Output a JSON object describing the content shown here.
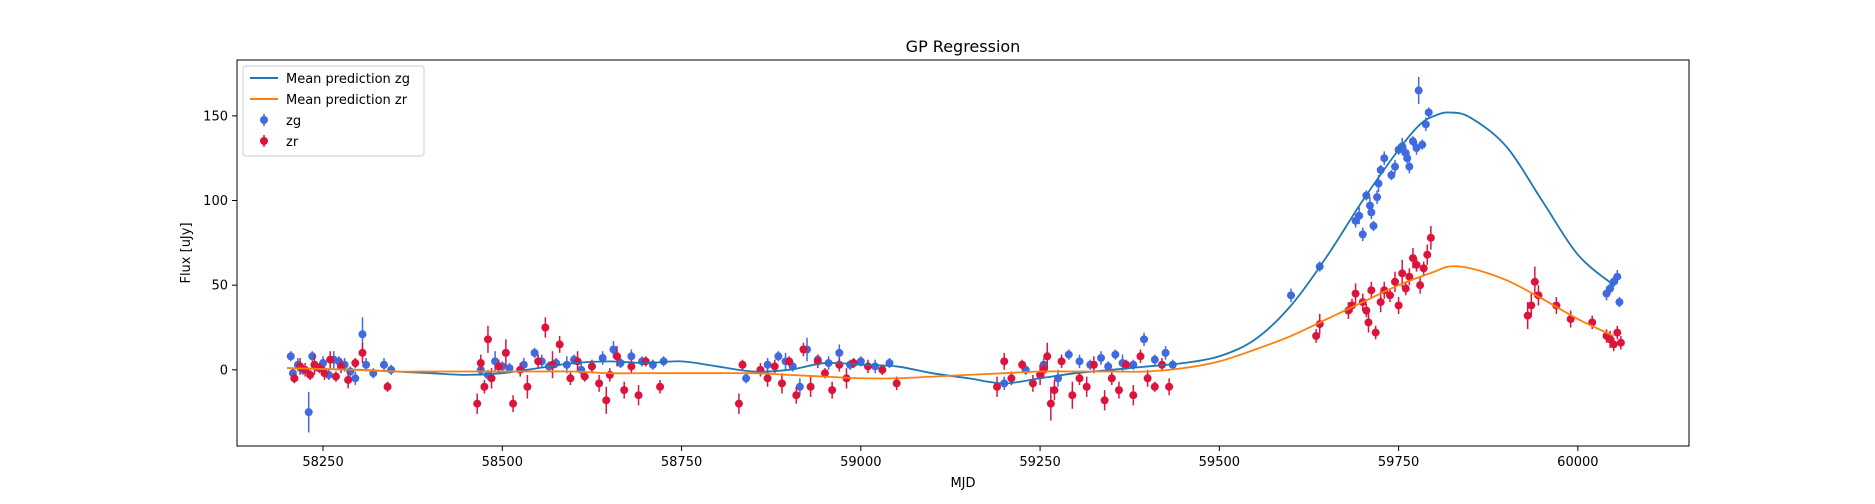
{
  "chart_data": {
    "type": "scatter",
    "title": "GP Regression",
    "xlabel": "MJD",
    "ylabel": "Flux [uJy]",
    "xlim": [
      58130,
      60155
    ],
    "ylim": [
      -45,
      183
    ],
    "xticks": [
      58250,
      58500,
      58750,
      59000,
      59250,
      59500,
      59750,
      60000
    ],
    "yticks": [
      0,
      50,
      100,
      150
    ],
    "grid": false,
    "legend_position": "top-left",
    "colors": {
      "zg": "#4169e1",
      "zr": "#dc143c",
      "mean_zg": "#1f77b4",
      "mean_zr": "#ff7f0e"
    },
    "lines": [
      {
        "name": "Mean prediction zg",
        "x": [
          58200,
          58250,
          58300,
          58350,
          58400,
          58450,
          58500,
          58550,
          58600,
          58650,
          58700,
          58750,
          58800,
          58850,
          58900,
          58950,
          59000,
          59050,
          59100,
          59150,
          59200,
          59250,
          59300,
          59350,
          59400,
          59450,
          59500,
          59550,
          59600,
          59650,
          59700,
          59750,
          59780,
          59800,
          59820,
          59850,
          59900,
          59950,
          60000,
          60050
        ],
        "y": [
          1,
          0.5,
          0,
          -1,
          -2,
          -3,
          -2,
          1,
          4,
          5,
          4,
          5,
          2,
          -1,
          0,
          4,
          3,
          2,
          -2,
          -5,
          -8,
          -5,
          -2,
          0,
          2,
          4,
          8,
          18,
          38,
          67,
          100,
          130,
          145,
          150,
          152,
          149,
          132,
          100,
          68,
          50
        ]
      },
      {
        "name": "Mean prediction zr",
        "x": [
          58200,
          58250,
          58300,
          58350,
          58400,
          58450,
          58500,
          58550,
          58600,
          58650,
          58700,
          58750,
          58800,
          58850,
          58900,
          58950,
          59000,
          59050,
          59100,
          59150,
          59200,
          59250,
          59300,
          59350,
          59400,
          59450,
          59500,
          59550,
          59600,
          59650,
          59700,
          59750,
          59800,
          59820,
          59850,
          59900,
          59950,
          60000,
          60050
        ],
        "y": [
          1,
          0.5,
          0,
          -1,
          -1,
          -1,
          -1,
          -1,
          -1,
          -2,
          -2,
          -2,
          -2,
          -2,
          -3,
          -4,
          -5,
          -5,
          -4,
          -3,
          -2,
          -1,
          -1,
          -1,
          -1,
          1,
          5,
          12,
          20,
          30,
          40,
          50,
          58,
          61,
          60,
          53,
          42,
          30,
          20
        ]
      }
    ],
    "series": [
      {
        "name": "zg",
        "x": [
          58205,
          58208,
          58215,
          58222,
          58230,
          58235,
          58240,
          58250,
          58258,
          58265,
          58272,
          58280,
          58288,
          58295,
          58305,
          58310,
          58320,
          58335,
          58345,
          58470,
          58480,
          58490,
          58500,
          58510,
          58530,
          58545,
          58555,
          58565,
          58575,
          58590,
          58600,
          58610,
          58625,
          58640,
          58655,
          58665,
          58680,
          58695,
          58710,
          58725,
          58840,
          58870,
          58885,
          58895,
          58905,
          58915,
          58925,
          58940,
          58955,
          58970,
          58985,
          59000,
          59020,
          59040,
          59200,
          59230,
          59255,
          59275,
          59290,
          59305,
          59320,
          59335,
          59345,
          59355,
          59365,
          59380,
          59395,
          59410,
          59425,
          59435,
          59600,
          59640,
          59690,
          59695,
          59700,
          59705,
          59710,
          59712,
          59715,
          59720,
          59722,
          59725,
          59730,
          59740,
          59745,
          59750,
          59755,
          59760,
          59762,
          59765,
          59770,
          59775,
          59778,
          59783,
          59788,
          59792,
          60040,
          60045,
          60050,
          60055,
          60058
        ],
        "y": [
          8,
          -2,
          3,
          0,
          -25,
          8,
          2,
          4,
          -3,
          6,
          5,
          3,
          -1,
          -5,
          21,
          3,
          -2,
          3,
          0,
          0,
          -3,
          5,
          2,
          1,
          3,
          10,
          5,
          2,
          4,
          3,
          6,
          0,
          2,
          7,
          12,
          4,
          8,
          5,
          3,
          5,
          -5,
          3,
          8,
          5,
          2,
          -10,
          12,
          6,
          4,
          10,
          3,
          5,
          2,
          4,
          -8,
          0,
          3,
          -5,
          9,
          5,
          3,
          7,
          2,
          9,
          4,
          3,
          18,
          6,
          10,
          3,
          44,
          61,
          88,
          91,
          80,
          103,
          97,
          93,
          85,
          102,
          110,
          118,
          125,
          115,
          120,
          130,
          132,
          128,
          125,
          120,
          135,
          131,
          165,
          133,
          145,
          152,
          45,
          48,
          52,
          55,
          40
        ],
        "err": [
          3,
          3,
          4,
          3,
          12,
          3,
          3,
          4,
          3,
          5,
          3,
          4,
          3,
          4,
          10,
          4,
          3,
          4,
          3,
          3,
          3,
          6,
          3,
          3,
          4,
          3,
          4,
          3,
          3,
          5,
          3,
          4,
          3,
          4,
          5,
          3,
          4,
          3,
          3,
          3,
          3,
          4,
          3,
          5,
          3,
          5,
          7,
          3,
          4,
          5,
          3,
          3,
          4,
          3,
          4,
          3,
          4,
          5,
          3,
          4,
          3,
          4,
          3,
          3,
          5,
          3,
          4,
          3,
          4,
          3,
          4,
          3,
          4,
          5,
          4,
          3,
          5,
          4,
          3,
          4,
          5,
          3,
          4,
          3,
          4,
          3,
          5,
          4,
          3,
          4,
          3,
          4,
          8,
          3,
          4,
          3,
          4,
          3,
          3,
          4,
          3
        ]
      },
      {
        "name": "zr",
        "x": [
          58210,
          58218,
          58225,
          58232,
          58238,
          58245,
          58252,
          58260,
          58268,
          58275,
          58285,
          58295,
          58305,
          58340,
          58465,
          58470,
          58475,
          58480,
          58485,
          58495,
          58505,
          58515,
          58525,
          58535,
          58550,
          58560,
          58570,
          58580,
          58595,
          58605,
          58615,
          58625,
          58635,
          58645,
          58650,
          58660,
          58670,
          58680,
          58690,
          58700,
          58720,
          58830,
          58835,
          58860,
          58870,
          58880,
          58890,
          58900,
          58910,
          58920,
          58930,
          58940,
          58950,
          58960,
          58970,
          58980,
          58990,
          59010,
          59030,
          59050,
          59190,
          59200,
          59210,
          59225,
          59240,
          59250,
          59255,
          59260,
          59265,
          59270,
          59280,
          59295,
          59305,
          59315,
          59325,
          59340,
          59350,
          59360,
          59370,
          59380,
          59390,
          59400,
          59410,
          59420,
          59430,
          59635,
          59640,
          59680,
          59685,
          59690,
          59700,
          59705,
          59708,
          59712,
          59718,
          59725,
          59730,
          59738,
          59745,
          59750,
          59755,
          59760,
          59765,
          59770,
          59775,
          59780,
          59785,
          59790,
          59795,
          59930,
          59935,
          59940,
          59945,
          59970,
          59990,
          60020,
          60040,
          60045,
          60050,
          60055,
          60060
        ],
        "y": [
          -5,
          2,
          0,
          -3,
          3,
          1,
          -2,
          6,
          -4,
          2,
          -6,
          4,
          10,
          -10,
          -20,
          4,
          -10,
          18,
          -5,
          2,
          10,
          -20,
          0,
          -10,
          5,
          25,
          3,
          15,
          -5,
          5,
          -4,
          2,
          -8,
          -18,
          -3,
          8,
          -12,
          2,
          -15,
          5,
          -10,
          -20,
          3,
          0,
          -5,
          2,
          -8,
          5,
          -15,
          12,
          -10,
          5,
          -2,
          -12,
          3,
          -5,
          4,
          2,
          0,
          -8,
          -10,
          5,
          -5,
          3,
          -8,
          -3,
          0,
          8,
          -20,
          -12,
          5,
          -15,
          -5,
          -10,
          3,
          -18,
          -5,
          -12,
          3,
          -15,
          8,
          -5,
          -10,
          3,
          -10,
          20,
          27,
          35,
          38,
          45,
          40,
          35,
          28,
          47,
          22,
          40,
          47,
          44,
          52,
          38,
          57,
          48,
          55,
          66,
          62,
          50,
          60,
          68,
          78,
          32,
          38,
          52,
          44,
          38,
          30,
          28,
          20,
          18,
          15,
          22,
          16
        ],
        "err": [
          3,
          5,
          4,
          3,
          6,
          3,
          4,
          5,
          3,
          4,
          5,
          3,
          6,
          3,
          6,
          5,
          4,
          8,
          6,
          4,
          8,
          5,
          4,
          7,
          4,
          6,
          8,
          5,
          4,
          6,
          3,
          4,
          5,
          8,
          4,
          6,
          5,
          4,
          6,
          3,
          4,
          6,
          3,
          4,
          5,
          4,
          6,
          3,
          5,
          4,
          6,
          4,
          3,
          5,
          4,
          6,
          3,
          4,
          3,
          4,
          6,
          5,
          4,
          3,
          5,
          6,
          5,
          8,
          10,
          6,
          4,
          8,
          4,
          6,
          5,
          6,
          4,
          5,
          3,
          6,
          4,
          5,
          3,
          4,
          5,
          4,
          6,
          5,
          4,
          6,
          5,
          4,
          6,
          5,
          4,
          6,
          5,
          4,
          6,
          5,
          8,
          4,
          5,
          6,
          4,
          5,
          4,
          6,
          7,
          8,
          7,
          9,
          6,
          5,
          5,
          4,
          4,
          5,
          4,
          4,
          4
        ]
      }
    ]
  }
}
